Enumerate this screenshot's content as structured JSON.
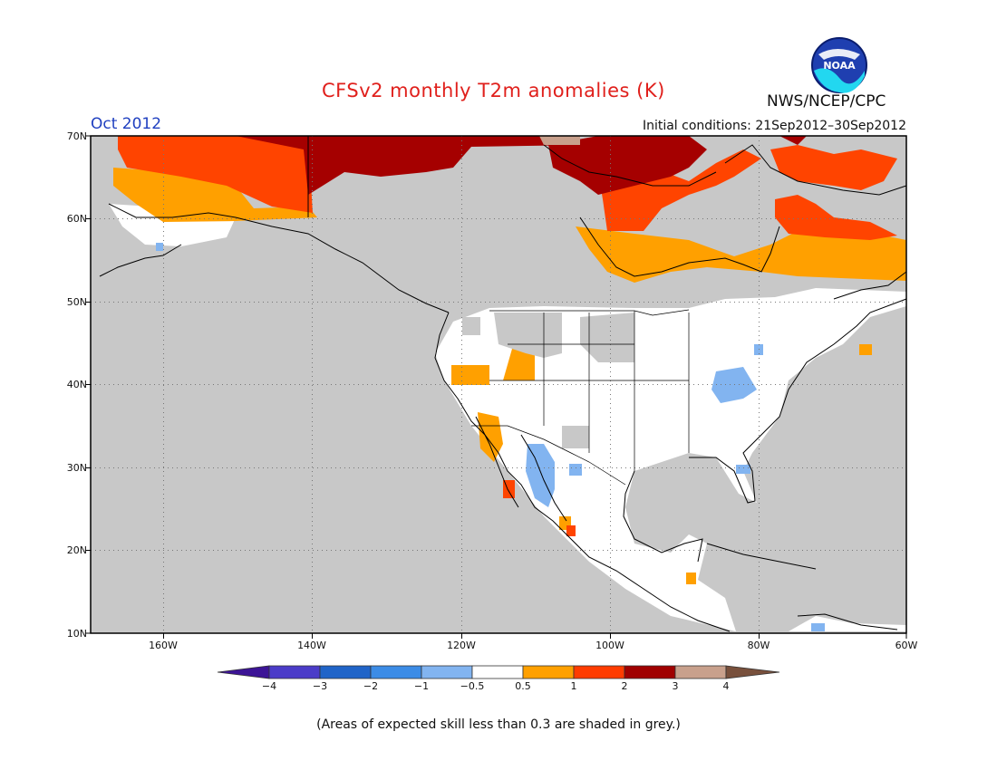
{
  "title": "CFSv2 monthly T2m anomalies (K)",
  "month": "Oct 2012",
  "initial_conditions": "Initial conditions: 21Sep2012–30Sep2012",
  "organization": "NWS/NCEP/CPC",
  "logo_text": "NOAA",
  "note": "(Areas of expected skill less than 0.3 are shaded in grey.)",
  "lat_labels": [
    "70N",
    "60N",
    "50N",
    "40N",
    "30N",
    "20N",
    "10N"
  ],
  "lon_labels": [
    "160W",
    "140W",
    "120W",
    "100W",
    "80W",
    "60W"
  ],
  "colorbar": {
    "labels": [
      "−4",
      "−3",
      "−2",
      "−1",
      "−0.5",
      "0.5",
      "1",
      "2",
      "3",
      "4"
    ],
    "colors": [
      "#3c1496",
      "#4b3cc8",
      "#2064c8",
      "#3c8ce6",
      "#82b4f0",
      "#ffffff",
      "#ffa000",
      "#ff3c00",
      "#a00000",
      "#c8a08c",
      "#78503c"
    ]
  },
  "colors": {
    "grey": "#c8c8c8",
    "land": "#ffffff",
    "orange": "#ffa000",
    "red": "#ff4400",
    "darkred": "#a50000",
    "tan": "#c8a08c",
    "lightblue": "#82b4f0",
    "title": "#e0201c",
    "month": "#2040c0"
  }
}
